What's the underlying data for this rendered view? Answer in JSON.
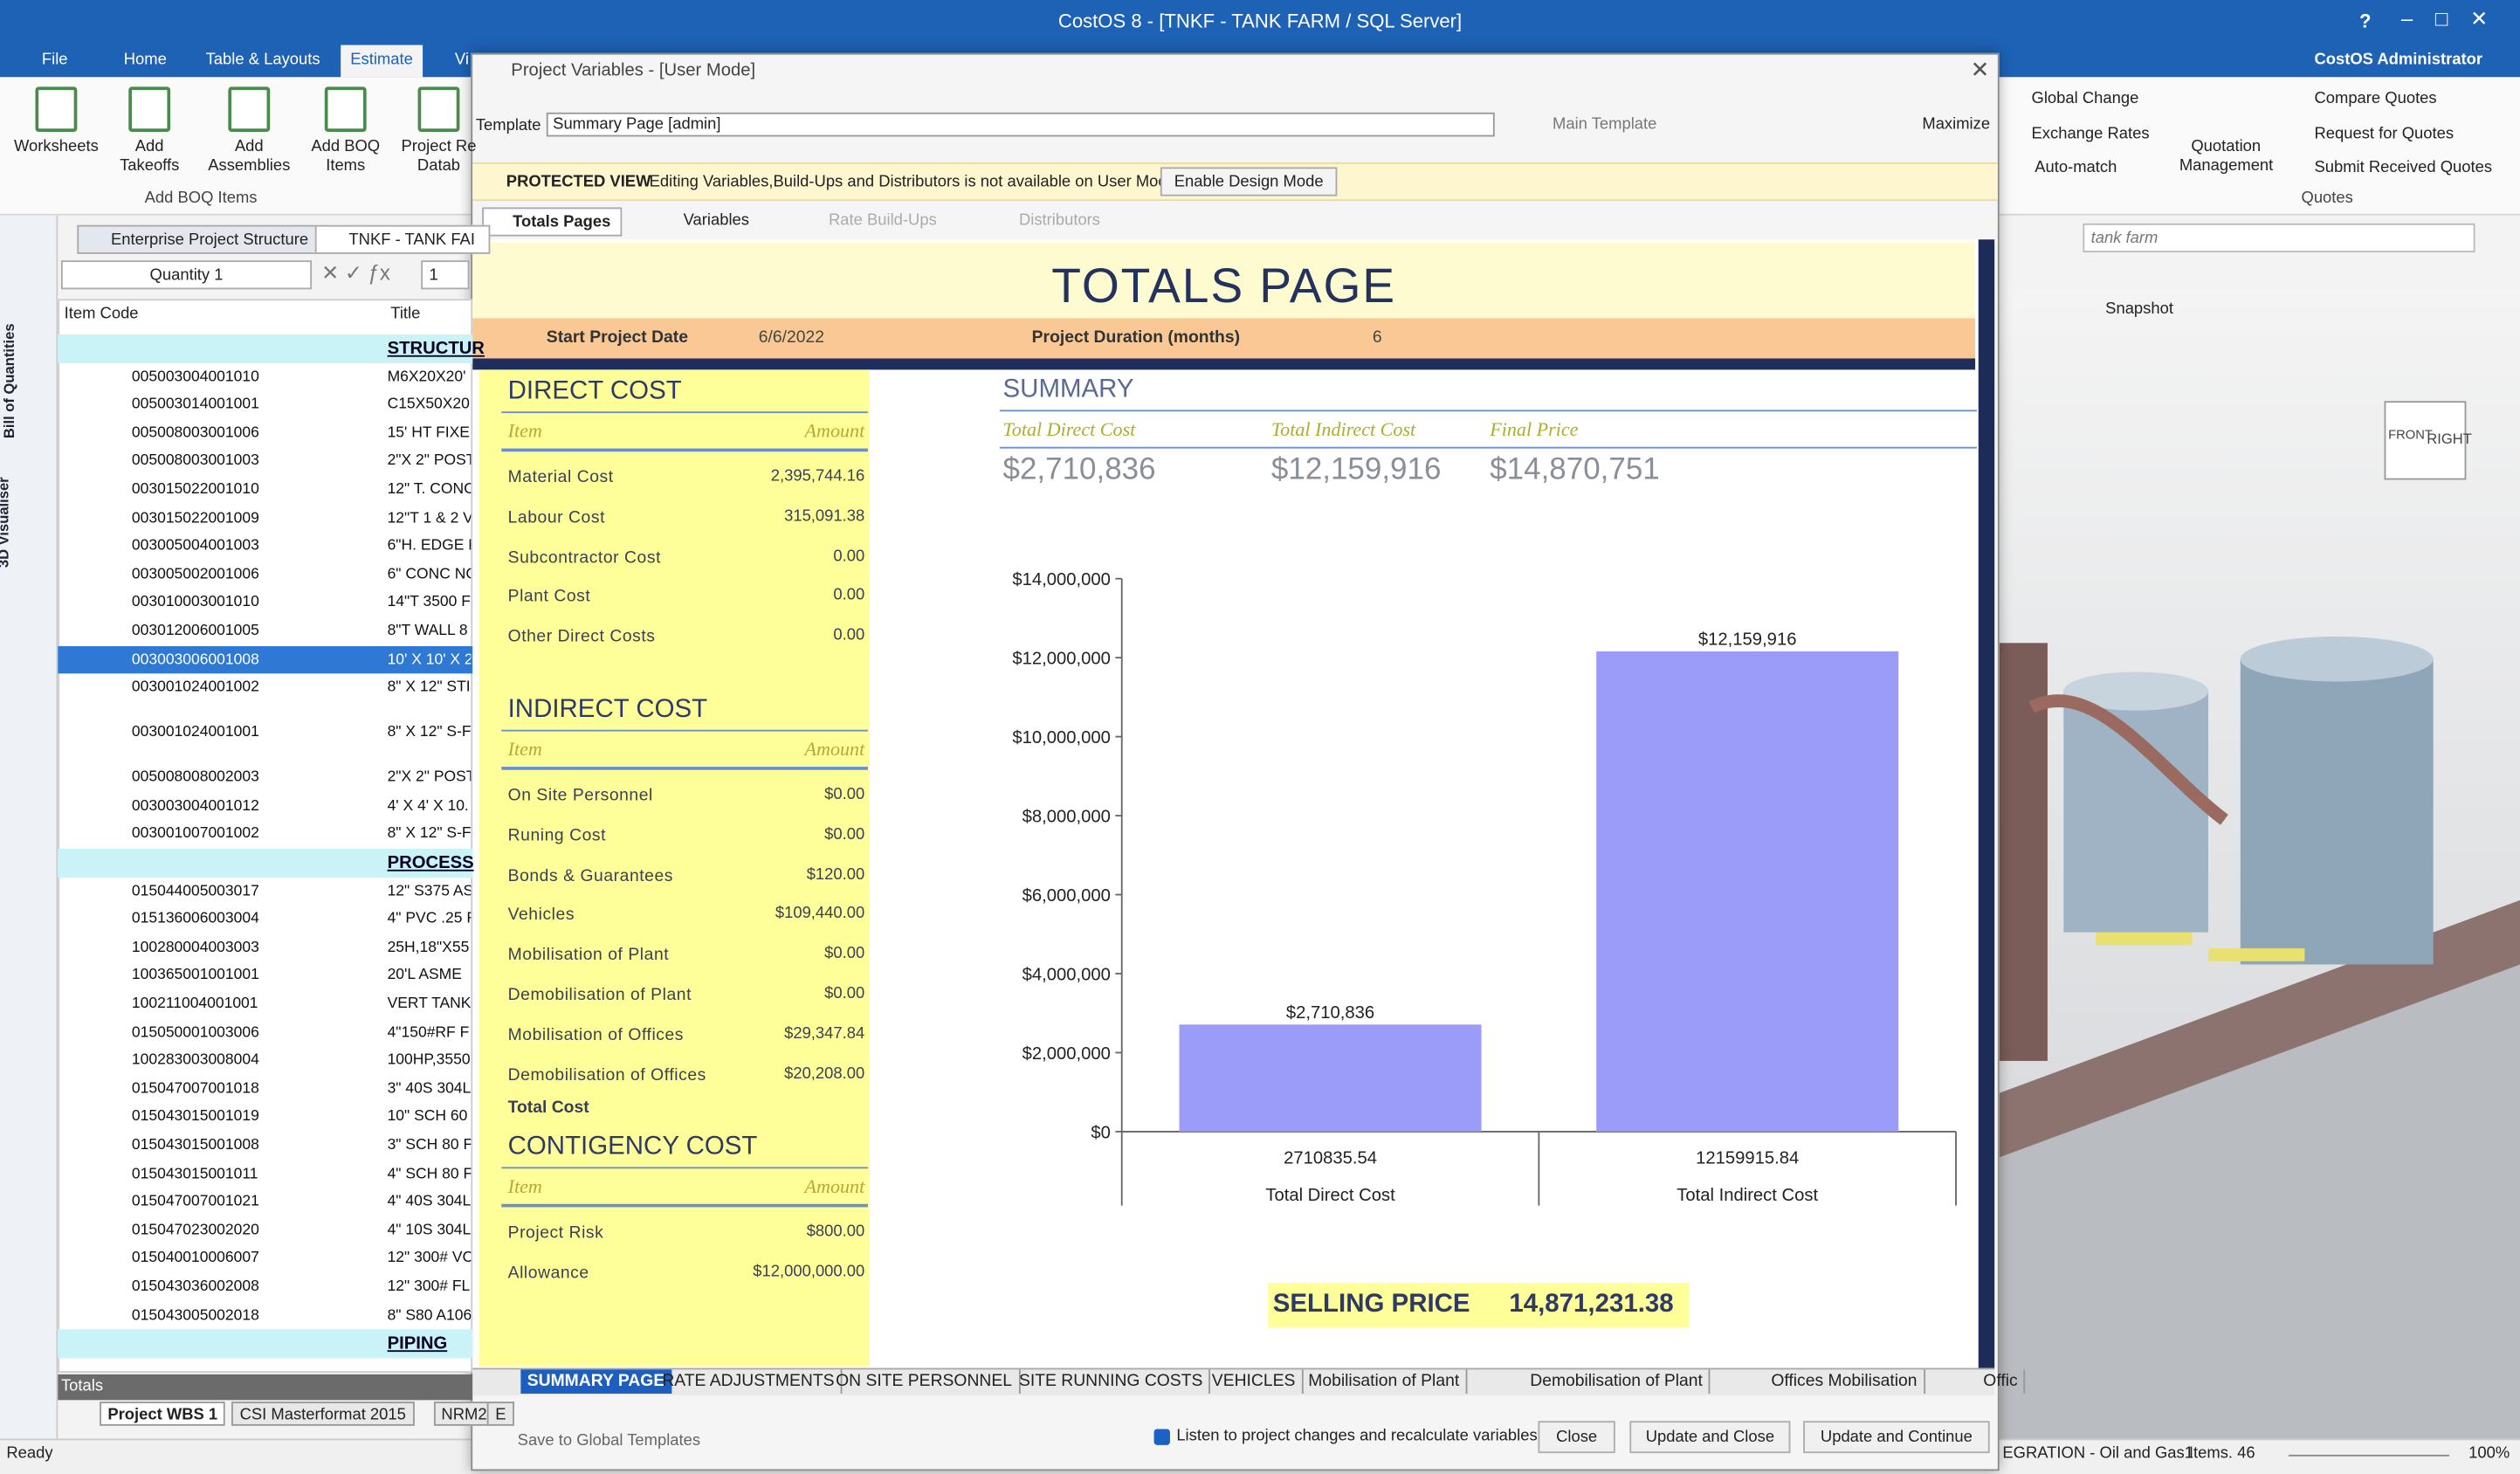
{
  "app": {
    "title": "CostOS 8 - [TNKF - TANK FARM  / SQL Server]",
    "user": "CostOS Administrator",
    "help": "?",
    "menu": [
      "File",
      "Home",
      "Table & Layouts",
      "Estimate",
      "Vi"
    ],
    "ribbon_left": [
      "Worksheets",
      "Add Takeoffs",
      "Add Assemblies",
      "Add BOQ Items",
      "Project Re Datab"
    ],
    "ribbon_left_group": "Add BOQ Items",
    "ribbon_right": [
      "Global Change",
      "Exchange Rates",
      "Auto-match",
      "Quotation Management",
      "Compare Quotes",
      "Request for Quotes",
      "Submit Received Quotes"
    ],
    "ribbon_right_group": "Quotes",
    "doc_tabs": [
      "Enterprise Project Structure",
      "TNKF - TANK FAI"
    ],
    "formula": {
      "name": "Quantity 1",
      "value": "1"
    },
    "side_labels": [
      "Bill of Quantities",
      "3D Visualiser"
    ],
    "grid": {
      "columns": [
        "Item Code",
        "Title"
      ],
      "rows": [
        {
          "group": "STRUCTUR"
        },
        {
          "code": "005003004001010",
          "title": "M6X20X20'"
        },
        {
          "code": "005003014001001",
          "title": "C15X50X20"
        },
        {
          "code": "005008003001006",
          "title": "15' HT FIXE"
        },
        {
          "code": "005008003001003",
          "title": "2\"X 2\" POST"
        },
        {
          "code": "003015022001010",
          "title": "12\" T. CONC"
        },
        {
          "code": "003015022001009",
          "title": "12\"T 1 & 2 V"
        },
        {
          "code": "003005004001003",
          "title": "6\"H. EDGE F"
        },
        {
          "code": "003005002001006",
          "title": "6\" CONC NC"
        },
        {
          "code": "003010003001010",
          "title": "14\"T 3500 F"
        },
        {
          "code": "003012006001005",
          "title": "8\"T WALL 8"
        },
        {
          "code": "003003006001008",
          "title": "10' X 10' X 2",
          "selected": true
        },
        {
          "code": "003001024001002",
          "title": "8\" X 12\" STI"
        },
        {
          "code": "003001024001001",
          "title": "8\" X 12\" S-F"
        },
        {
          "code": "005008008002003",
          "title": "2\"X 2\" POST"
        },
        {
          "code": "003003004001012",
          "title": "4' X 4' X 10."
        },
        {
          "code": "003001007001002",
          "title": "8\" X 12\" S-F"
        },
        {
          "group": "PROCESS"
        },
        {
          "code": "015044005003017",
          "title": "12\" S375 AS"
        },
        {
          "code": "015136006003004",
          "title": "4\" PVC .25 F"
        },
        {
          "code": "100280004003003",
          "title": "25H,18\"X55"
        },
        {
          "code": "100365001001001",
          "title": "20'L ASME"
        },
        {
          "code": "100211004001001",
          "title": "VERT TANK"
        },
        {
          "code": "015050001003006",
          "title": "4\"150#RF F"
        },
        {
          "code": "100283003008004",
          "title": "100HP,3550"
        },
        {
          "code": "015047007001018",
          "title": "3\" 40S 304L"
        },
        {
          "code": "015043015001019",
          "title": "10\" SCH 60"
        },
        {
          "code": "015043015001008",
          "title": "3\" SCH 80 F"
        },
        {
          "code": "015043015001011",
          "title": "4\" SCH 80 F"
        },
        {
          "code": "015047007001021",
          "title": "4\" 40S 304L"
        },
        {
          "code": "015047023002020",
          "title": "4\" 10S 304L"
        },
        {
          "code": "015040010006007",
          "title": "12\" 300# VC"
        },
        {
          "code": "015043036002008",
          "title": "12\" 300# FL"
        },
        {
          "code": "015043005002018",
          "title": "8\" S80 A106"
        },
        {
          "group": "PIPING"
        }
      ],
      "totals": "Totals"
    },
    "bottom_tabs": [
      "Project WBS 1",
      "CSI Masterformat 2015",
      "NRM2",
      "E"
    ],
    "search": "tank farm",
    "snapshot": "Snapshot",
    "view_cube": [
      "FRONT",
      "RIGHT"
    ],
    "status": "Ready",
    "status_right": "EGRATION - Oil and Gas1",
    "items": "Items. 46",
    "zoom": "100%"
  },
  "dialog": {
    "title": "Project Variables - [User Mode]",
    "template_label": "Template",
    "template": "Summary Page [admin]",
    "main_template": "Main Template",
    "maximize": "Maximize",
    "protected": "PROTECTED VIEW",
    "protected_msg": "Editing Variables,Build-Ups and Distributors is not available on User Mode.",
    "design_button": "Enable Design Mode",
    "tabs": [
      "Totals Pages",
      "Variables",
      "Rate Build-Ups",
      "Distributors"
    ],
    "sheet": {
      "title": "TOTALS PAGE",
      "start_label": "Start Project Date",
      "start": "6/6/2022",
      "duration_label": "Project Duration (months)",
      "duration": "6",
      "sections": [
        {
          "title": "DIRECT COST",
          "item": "Item",
          "amount": "Amount",
          "rows": [
            [
              "Material Cost",
              "2,395,744.16"
            ],
            [
              "Labour Cost",
              "315,091.38"
            ],
            [
              "Subcontractor Cost",
              "0.00"
            ],
            [
              "Plant Cost",
              "0.00"
            ],
            [
              "Other Direct Costs",
              "0.00"
            ]
          ]
        },
        {
          "title": "INDIRECT COST",
          "item": "Item",
          "amount": "Amount",
          "rows": [
            [
              "On Site Personnel",
              "$0.00"
            ],
            [
              "Runing Cost",
              "$0.00"
            ],
            [
              "Bonds & Guarantees",
              "$120.00"
            ],
            [
              "Vehicles",
              "$109,440.00"
            ],
            [
              "Mobilisation of Plant",
              "$0.00"
            ],
            [
              "Demobilisation of Plant",
              "$0.00"
            ],
            [
              "Mobilisation of Offices",
              "$29,347.84"
            ],
            [
              "Demobilisation of Offices",
              "$20,208.00"
            ]
          ],
          "total": "Total Cost"
        },
        {
          "title": "CONTIGENCY  COST",
          "item": "Item",
          "amount": "Amount",
          "rows": [
            [
              "Project Risk",
              "$800.00"
            ],
            [
              "Allowance",
              "$12,000,000.00"
            ]
          ]
        }
      ],
      "summary": {
        "title": "SUMMARY",
        "labels": [
          "Total Direct Cost",
          "Total Indirect Cost",
          "Final Price"
        ],
        "values": [
          "$2,710,836",
          "$12,159,916",
          "$14,870,751"
        ]
      },
      "selling_label": "SELLING PRICE",
      "selling": "14,871,231.38",
      "tabs": [
        "SUMMARY PAGE",
        "RATE ADJUSTMENTS",
        "ON SITE PERSONNEL",
        "SITE RUNNING COSTS",
        "VEHICLES",
        "Mobilisation of Plant",
        "Demobilisation of Plant",
        "Offices Mobilisation",
        "Offic"
      ]
    },
    "save": "Save to Global Templates",
    "listen": "Listen to project changes and recalculate variables",
    "buttons": [
      "Close",
      "Update and Close",
      "Update and Continue"
    ]
  },
  "chart_data": {
    "type": "bar",
    "categories": [
      "Total Direct Cost",
      "Total Indirect Cost"
    ],
    "category_values": [
      "2710835.54",
      "12159915.84"
    ],
    "values": [
      2710835.54,
      12159915.84
    ],
    "value_labels": [
      "$2,710,836",
      "$12,159,916"
    ],
    "color": "#9b9bfa",
    "ylim": [
      0,
      14000000
    ],
    "yticks": [
      {
        "value": 0,
        "label": "$0"
      },
      {
        "value": 2000000,
        "label": "$2,000,000"
      },
      {
        "value": 4000000,
        "label": "$4,000,000"
      },
      {
        "value": 6000000,
        "label": "$6,000,000"
      },
      {
        "value": 8000000,
        "label": "$8,000,000"
      },
      {
        "value": 10000000,
        "label": "$10,000,000"
      },
      {
        "value": 12000000,
        "label": "$12,000,000"
      },
      {
        "value": 14000000,
        "label": "$14,000,000"
      }
    ]
  }
}
